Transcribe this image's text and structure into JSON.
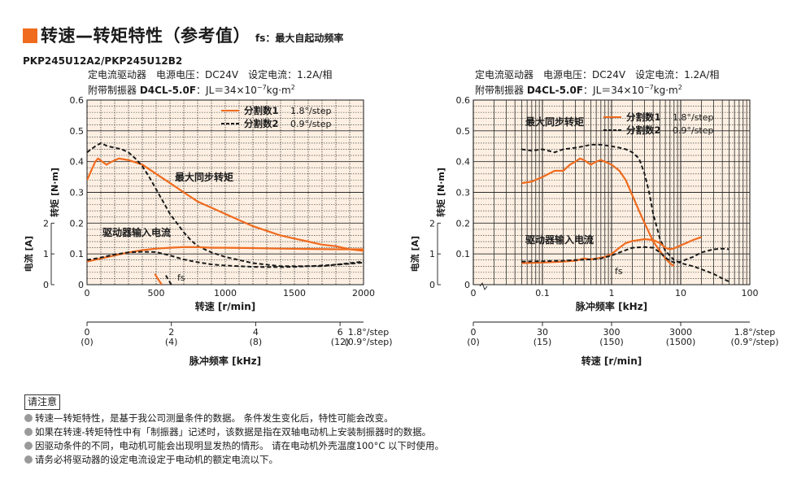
{
  "page": {
    "title": "转速—转矩特性（参考值）",
    "title_suffix": "fs：最大自起动频率",
    "model": "PKP245U12A2/PKP245U12B2",
    "notes_title": "请注意",
    "notes": [
      "转速—转矩特性，是基于我公司测量条件的数据。 条件发生变化后，特性可能会改变。",
      "如果在转速-转矩特性中有「制振器」记述时，该数据是指在双轴电动机上安装制振器时的数据。",
      "因驱动条件的不同，电动机可能会出现明显发热的情形。 请在电动机外壳温度100°C 以下时使用。",
      "请务必将驱动器的设定电流设定于电动机的额定电流以下。"
    ]
  },
  "colors": {
    "accent": "#f06b1e",
    "plot_bg": "#fdf0e3",
    "curve_orange": "#f06b1e",
    "curve_dashed": "#1a1a1a",
    "grid": "#2a2a2a"
  },
  "chart_data": [
    {
      "type": "line",
      "conditions_line1": "定电流驱动器　电源电压：DC24V　设定电流：1.2A/相",
      "conditions_line2_prefix": "附带制振器 ",
      "conditions_damper": "D4CL-5.0F",
      "conditions_inertia": "：JL＝34×10",
      "conditions_exp": "−7",
      "conditions_unit": "kg·m",
      "conditions_unit_exp": "2",
      "x_scale": "linear",
      "xlim": [
        0,
        2000
      ],
      "ylim": [
        0,
        0.6
      ],
      "xlabel": "转速 [r/min]",
      "ylabel": "转矩 [N·m]",
      "current_label": "电流 [A]",
      "current_lim": [
        0,
        2
      ],
      "current_ticks": [
        "0",
        "1",
        "2"
      ],
      "x_ticks": [
        0,
        500,
        1000,
        1500,
        2000
      ],
      "x_tick_labels": [
        "0",
        "500",
        "1000",
        "1500",
        "2000"
      ],
      "y_ticks": [
        0,
        0.1,
        0.2,
        0.3,
        0.4,
        0.5,
        0.6
      ],
      "y_tick_labels": [
        "0",
        "0.1",
        "0.2",
        "0.3",
        "0.4",
        "0.5",
        "0.6"
      ],
      "legend": [
        {
          "name": "分割数1",
          "step": "1.8°/step",
          "style": "solid"
        },
        {
          "name": "分割数2",
          "step": "0.9°/step",
          "style": "dashed"
        }
      ],
      "annotations": {
        "pullout": "最大同步转矩",
        "current": "驱动器输入电流",
        "fs": "fs"
      },
      "series": [
        {
          "name": "分割数1",
          "kind": "torque",
          "style": "solid",
          "x": [
            0,
            30,
            60,
            80,
            110,
            140,
            180,
            230,
            300,
            400,
            500,
            600,
            700,
            800,
            900,
            1000,
            1100,
            1200,
            1300,
            1400,
            1500,
            1600,
            1700,
            1800,
            1900,
            2000
          ],
          "y": [
            0.34,
            0.37,
            0.4,
            0.41,
            0.4,
            0.39,
            0.4,
            0.41,
            0.405,
            0.39,
            0.36,
            0.33,
            0.3,
            0.27,
            0.25,
            0.23,
            0.21,
            0.19,
            0.175,
            0.16,
            0.15,
            0.14,
            0.13,
            0.125,
            0.115,
            0.11
          ]
        },
        {
          "name": "分割数2",
          "kind": "torque",
          "style": "dashed",
          "x": [
            0,
            30,
            60,
            100,
            150,
            200,
            250,
            300,
            350,
            400,
            450,
            500,
            550,
            600,
            650,
            700,
            750,
            800,
            900,
            1000,
            1100,
            1200,
            1300,
            1400,
            1500,
            1600,
            1700,
            1800,
            1900,
            2000
          ],
          "y": [
            0.43,
            0.44,
            0.45,
            0.46,
            0.45,
            0.445,
            0.44,
            0.43,
            0.41,
            0.385,
            0.35,
            0.31,
            0.27,
            0.23,
            0.2,
            0.17,
            0.145,
            0.125,
            0.105,
            0.09,
            0.08,
            0.07,
            0.065,
            0.06,
            0.06,
            0.06,
            0.06,
            0.065,
            0.07,
            0.075
          ]
        },
        {
          "name": "分割数1",
          "kind": "current",
          "style": "solid",
          "x": [
            0,
            100,
            200,
            300,
            400,
            500,
            600,
            700,
            800,
            900,
            1000,
            1200,
            1400,
            1600,
            1800,
            2000
          ],
          "y": [
            0.75,
            0.85,
            0.95,
            1.05,
            1.12,
            1.17,
            1.2,
            1.22,
            1.22,
            1.2,
            1.2,
            1.19,
            1.17,
            1.16,
            1.15,
            1.15
          ]
        },
        {
          "name": "分割数2",
          "kind": "current",
          "style": "dashed",
          "x": [
            0,
            100,
            200,
            300,
            400,
            500,
            600,
            700,
            800,
            900,
            1000,
            1100,
            1200,
            1300,
            1400,
            1500,
            1600,
            1700,
            1800,
            1900,
            2000
          ],
          "y": [
            0.8,
            0.88,
            0.98,
            1.05,
            1.07,
            1.06,
            0.95,
            0.82,
            0.73,
            0.66,
            0.62,
            0.6,
            0.58,
            0.57,
            0.57,
            0.58,
            0.6,
            0.62,
            0.65,
            0.68,
            0.72
          ]
        },
        {
          "name": "fs",
          "kind": "fs",
          "style": "solid",
          "x": [
            490,
            540
          ],
          "y": [
            0.035,
            0
          ]
        },
        {
          "name": "fs",
          "kind": "fs",
          "style": "dashed",
          "x": [
            570,
            610
          ],
          "y": [
            0.03,
            0
          ]
        }
      ],
      "secondary_axis": {
        "label": "脉冲频率 [kHz]",
        "ticks": [
          {
            "value": 0,
            "label": "0",
            "sub": "(0)"
          },
          {
            "value": 1000,
            "label": "2",
            "sub": "(4)"
          },
          {
            "value": 2000,
            "label": "4",
            "sub": "(8)"
          },
          {
            "value": 3000,
            "label": "6",
            "sub": "(12)"
          }
        ],
        "end_label": "1.8°/step",
        "end_sub": "(0.9°/step)"
      }
    },
    {
      "type": "line",
      "conditions_line1": "定电流驱动器　电源电压：DC24V　设定电流：1.2A/相",
      "conditions_line2_prefix": "附带制振器 ",
      "conditions_damper": "D4CL-5.0F",
      "conditions_inertia": "：JL＝34×10",
      "conditions_exp": "−7",
      "conditions_unit": "kg·m",
      "conditions_unit_exp": "2",
      "x_scale": "log",
      "xlim": [
        0.01,
        100
      ],
      "ylim": [
        0,
        0.6
      ],
      "xlabel": "脉冲频率 [kHz]",
      "ylabel": "转矩 [N·m]",
      "current_label": "电流 [A]",
      "current_lim": [
        0,
        2
      ],
      "current_ticks": [
        "0",
        "1",
        "2"
      ],
      "x_ticks": [
        0.1,
        1,
        10,
        100
      ],
      "x_tick_labels": [
        "0.1",
        "1",
        "10",
        "100"
      ],
      "y_ticks": [
        0,
        0.1,
        0.2,
        0.3,
        0.4,
        0.5,
        0.6
      ],
      "y_tick_labels": [
        "0",
        "0.1",
        "0.2",
        "0.3",
        "0.4",
        "0.5",
        "0.6"
      ],
      "legend": [
        {
          "name": "分割数1",
          "step": "1.8°/step",
          "style": "solid"
        },
        {
          "name": "分割数2",
          "step": "0.9°/step",
          "style": "dashed"
        }
      ],
      "annotations": {
        "pullout": "最大同步转矩",
        "current": "驱动器输入电流",
        "fs": "fs"
      },
      "series": [
        {
          "name": "分割数1",
          "kind": "torque",
          "style": "solid",
          "x": [
            0.05,
            0.07,
            0.1,
            0.15,
            0.2,
            0.25,
            0.3,
            0.35,
            0.4,
            0.5,
            0.6,
            0.7,
            0.8,
            1.0,
            1.3,
            1.6,
            2.0,
            2.5,
            3.0,
            4.0,
            5.0,
            6.0,
            7.0,
            8.0
          ],
          "y": [
            0.33,
            0.335,
            0.35,
            0.37,
            0.37,
            0.39,
            0.4,
            0.41,
            0.405,
            0.39,
            0.4,
            0.405,
            0.4,
            0.39,
            0.37,
            0.34,
            0.29,
            0.24,
            0.2,
            0.14,
            0.11,
            0.085,
            0.07,
            0.06
          ]
        },
        {
          "name": "分割数2",
          "kind": "torque",
          "style": "dashed",
          "x": [
            0.05,
            0.07,
            0.1,
            0.15,
            0.2,
            0.3,
            0.4,
            0.5,
            0.7,
            1.0,
            1.3,
            1.6,
            2.0,
            2.5,
            3.0,
            3.5,
            4.0,
            5.0,
            6.0,
            8.0,
            10,
            15,
            20,
            30,
            40,
            50
          ],
          "y": [
            0.44,
            0.435,
            0.44,
            0.43,
            0.44,
            0.445,
            0.45,
            0.455,
            0.455,
            0.45,
            0.445,
            0.44,
            0.43,
            0.41,
            0.36,
            0.3,
            0.23,
            0.15,
            0.11,
            0.08,
            0.07,
            0.06,
            0.05,
            0.035,
            0.02,
            0.01
          ]
        },
        {
          "name": "分割数1",
          "kind": "current",
          "style": "solid",
          "x": [
            0.05,
            0.1,
            0.2,
            0.3,
            0.4,
            0.5,
            0.6,
            0.8,
            1.0,
            1.3,
            1.6,
            2.0,
            3.0,
            4.0,
            5.0,
            6.0,
            7.0,
            8.0,
            10,
            12,
            15,
            20
          ],
          "y": [
            0.7,
            0.72,
            0.75,
            0.78,
            0.85,
            0.82,
            0.85,
            0.9,
            1.0,
            1.2,
            1.35,
            1.42,
            1.48,
            1.45,
            1.35,
            1.2,
            1.15,
            1.18,
            1.28,
            1.35,
            1.45,
            1.55
          ]
        },
        {
          "name": "分割数2",
          "kind": "current",
          "style": "dashed",
          "x": [
            0.05,
            0.1,
            0.2,
            0.3,
            0.5,
            0.7,
            1.0,
            1.5,
            2.0,
            3.0,
            4.0,
            5.0,
            6.0,
            7.0,
            8.0,
            10,
            15,
            20,
            30,
            40,
            50
          ],
          "y": [
            0.75,
            0.76,
            0.78,
            0.8,
            0.82,
            0.85,
            0.95,
            1.1,
            1.2,
            1.22,
            1.2,
            1.05,
            0.88,
            0.78,
            0.72,
            0.75,
            0.9,
            1.05,
            1.15,
            1.17,
            1.15
          ]
        }
      ],
      "secondary_axis": {
        "label": "转速 [r/min]",
        "ticks": [
          {
            "value": 0.01,
            "label": "0",
            "sub": "(0)"
          },
          {
            "value": 0.1,
            "label": "30",
            "sub": "(15)"
          },
          {
            "value": 1,
            "label": "300",
            "sub": "(150)"
          },
          {
            "value": 10,
            "label": "3000",
            "sub": "(1500)"
          }
        ],
        "end_label": "1.8°/step",
        "end_sub": "(0.9°/step)"
      }
    }
  ]
}
